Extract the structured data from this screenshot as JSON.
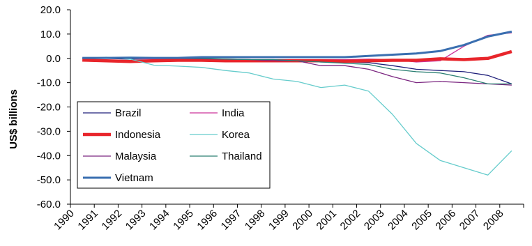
{
  "chart_data": {
    "type": "line",
    "title": "",
    "xlabel": "",
    "ylabel": "US$ billions",
    "ylim": [
      -60,
      20
    ],
    "yticks": [
      20,
      10,
      0,
      -10,
      -20,
      -30,
      -40,
      -50,
      -60
    ],
    "ytick_labels": [
      "20.0",
      "10.0",
      "0.0",
      "-10.0",
      "-20.0",
      "-30.0",
      "-40.0",
      "-50.0",
      "-60.0"
    ],
    "categories": [
      "1990",
      "1991",
      "1992",
      "1993",
      "1994",
      "1995",
      "1996",
      "1997",
      "1998",
      "1999",
      "2000",
      "2001",
      "2002",
      "2003",
      "2004",
      "2005",
      "2006",
      "2007",
      "2008"
    ],
    "grid": false,
    "legend_position": "bottom-left",
    "series": [
      {
        "name": "Brazil",
        "color": "#1f1f7a",
        "width": 1.3,
        "values": [
          0.0,
          0.0,
          -0.3,
          -0.2,
          -0.3,
          -0.5,
          -0.5,
          -0.5,
          -1.0,
          -1.0,
          -1.5,
          -1.5,
          -1.8,
          -3.0,
          -4.5,
          -5.0,
          -5.5,
          -7.0,
          -10.5
        ]
      },
      {
        "name": "India",
        "color": "#cc3399",
        "width": 1.3,
        "values": [
          0.0,
          0.0,
          0.0,
          -0.3,
          -0.3,
          -0.5,
          -0.5,
          -0.5,
          -0.5,
          -0.5,
          -0.5,
          -0.5,
          -0.3,
          -0.5,
          -1.5,
          -1.0,
          5.0,
          9.5,
          10.5
        ]
      },
      {
        "name": "Indonesia",
        "color": "#e8252b",
        "width": 4.5,
        "values": [
          -0.7,
          -1.0,
          -1.3,
          -1.0,
          -0.8,
          -0.8,
          -1.0,
          -1.0,
          -1.0,
          -1.0,
          -1.0,
          -1.2,
          -1.0,
          -0.8,
          -0.8,
          -0.2,
          -0.5,
          0.0,
          2.8
        ]
      },
      {
        "name": "Korea",
        "color": "#66cccc",
        "width": 1.3,
        "values": [
          0.0,
          0.5,
          -0.3,
          -2.8,
          -3.2,
          -3.7,
          -5.0,
          -6.0,
          -8.5,
          -9.5,
          -12.0,
          -11.0,
          -13.5,
          -23.0,
          -35.0,
          -42.0,
          -45.0,
          -48.0,
          -38.0
        ]
      },
      {
        "name": "Malaysia",
        "color": "#7b2680",
        "width": 1.3,
        "values": [
          0.0,
          0.0,
          0.0,
          0.0,
          0.0,
          -0.2,
          -0.3,
          -0.5,
          -1.0,
          -1.0,
          -3.0,
          -3.0,
          -4.5,
          -7.5,
          -10.0,
          -9.5,
          -10.0,
          -10.5,
          -11.0
        ]
      },
      {
        "name": "Thailand",
        "color": "#2a7f72",
        "width": 1.3,
        "values": [
          0.0,
          0.0,
          0.0,
          0.0,
          0.0,
          0.0,
          -0.3,
          -0.5,
          -0.5,
          -1.0,
          -1.5,
          -2.0,
          -2.5,
          -4.5,
          -5.5,
          -6.0,
          -8.0,
          -10.5,
          -10.5
        ]
      },
      {
        "name": "Vietnam",
        "color": "#3a6fb0",
        "width": 3.0,
        "values": [
          0.2,
          0.2,
          0.3,
          0.2,
          0.2,
          0.5,
          0.5,
          0.5,
          0.5,
          0.5,
          0.5,
          0.5,
          1.0,
          1.5,
          2.0,
          3.0,
          5.5,
          9.0,
          11.0
        ]
      }
    ]
  }
}
